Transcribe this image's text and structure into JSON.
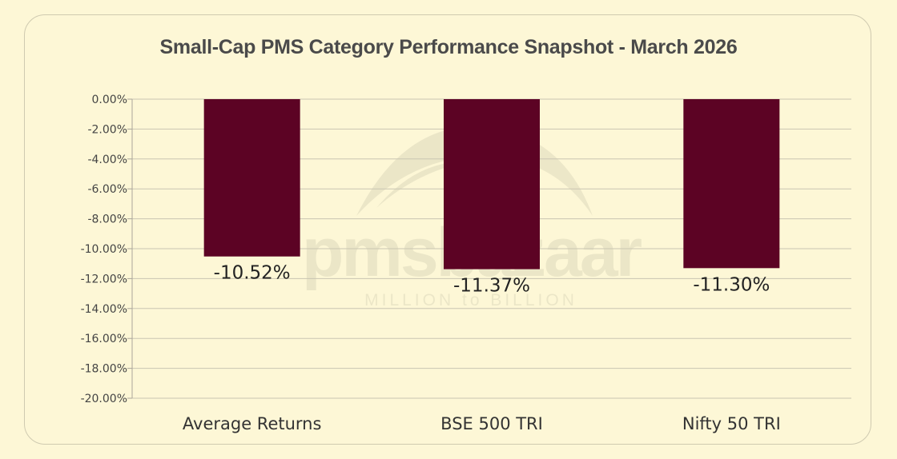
{
  "chart_data": {
    "type": "bar",
    "title": "Small-Cap PMS Category Performance Snapshot - March 2026",
    "categories": [
      "Average Returns",
      "BSE 500 TRI",
      "Nifty 50 TRI"
    ],
    "values": [
      -10.52,
      -11.37,
      -11.3
    ],
    "data_labels": [
      "-10.52%",
      "-11.37%",
      "-11.30%"
    ],
    "ylim": [
      -20,
      0
    ],
    "y_ticks": [
      0,
      -2,
      -4,
      -6,
      -8,
      -10,
      -12,
      -14,
      -16,
      -18,
      -20
    ],
    "y_tick_labels": [
      "0.00%",
      "-2.00%",
      "-4.00%",
      "-6.00%",
      "-8.00%",
      "-10.00%",
      "-12.00%",
      "-14.00%",
      "-16.00%",
      "-18.00%",
      "-20.00%"
    ],
    "grid": true,
    "legend": "none",
    "bar_color": "#5c0324"
  },
  "watermark": {
    "brand": "pmsbazaar",
    "tagline": "MILLION to BILLION"
  }
}
